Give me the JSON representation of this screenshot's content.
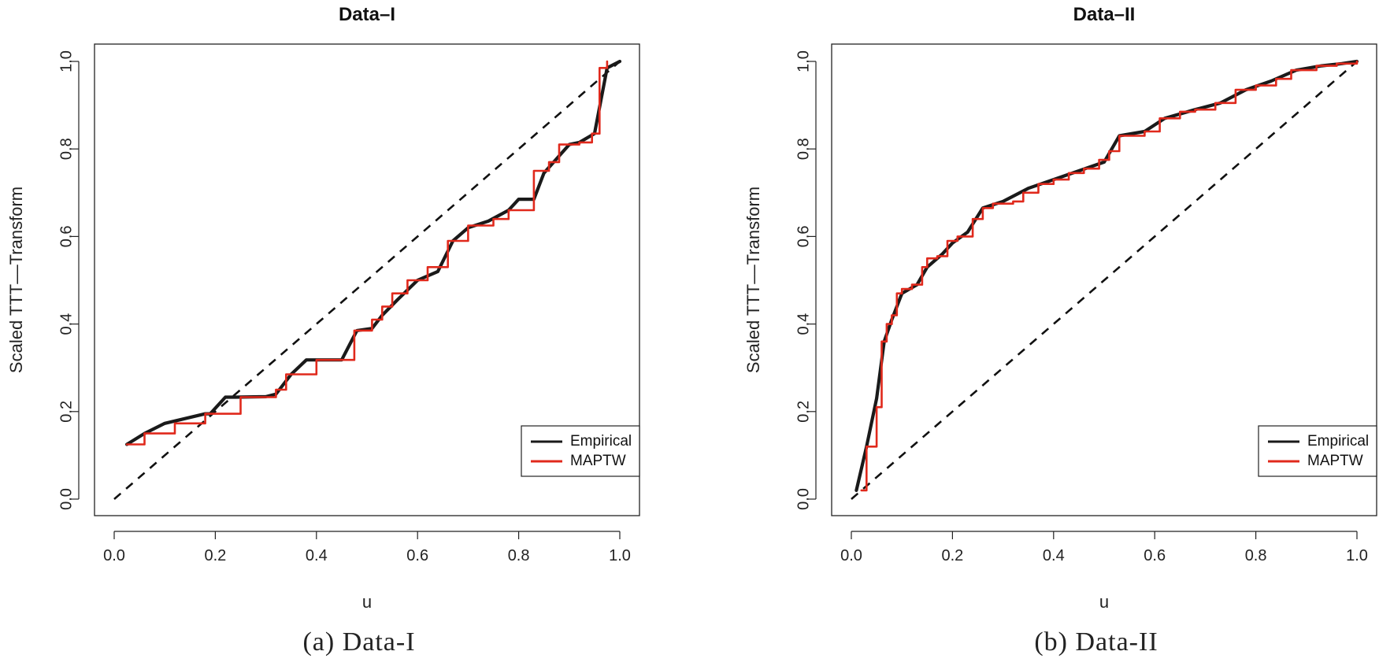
{
  "chart_data": [
    {
      "type": "line",
      "title": "Data–I",
      "caption": "(a) Data-I",
      "xlabel": "u",
      "ylabel": "Scaled TTT––Transform",
      "xlim": [
        0,
        1
      ],
      "ylim": [
        0,
        1
      ],
      "xticks": [
        "0.0",
        "0.2",
        "0.4",
        "0.6",
        "0.8",
        "1.0"
      ],
      "yticks": [
        "0.0",
        "0.2",
        "0.4",
        "0.6",
        "0.8",
        "1.0"
      ],
      "legend_position": "bottom-right",
      "reference_line": {
        "x": [
          0,
          1
        ],
        "y": [
          0,
          1
        ],
        "style": "dashed",
        "color": "#111111"
      },
      "series": [
        {
          "name": "Empirical",
          "color": "#1a1a1a",
          "step": false,
          "x": [
            0.025,
            0.06,
            0.1,
            0.18,
            0.19,
            0.22,
            0.24,
            0.3,
            0.32,
            0.35,
            0.38,
            0.45,
            0.48,
            0.51,
            0.53,
            0.56,
            0.6,
            0.64,
            0.67,
            0.7,
            0.74,
            0.78,
            0.8,
            0.83,
            0.85,
            0.9,
            0.92,
            0.95,
            0.975,
            1.0
          ],
          "y": [
            0.125,
            0.15,
            0.173,
            0.195,
            0.195,
            0.233,
            0.233,
            0.234,
            0.24,
            0.285,
            0.318,
            0.318,
            0.385,
            0.39,
            0.42,
            0.455,
            0.5,
            0.52,
            0.59,
            0.62,
            0.635,
            0.66,
            0.685,
            0.685,
            0.745,
            0.81,
            0.815,
            0.835,
            0.985,
            1.0
          ]
        },
        {
          "name": "MAPTW",
          "color": "#e0291c",
          "step": true,
          "x": [
            0.025,
            0.06,
            0.12,
            0.18,
            0.25,
            0.32,
            0.34,
            0.4,
            0.475,
            0.51,
            0.53,
            0.55,
            0.58,
            0.62,
            0.66,
            0.7,
            0.75,
            0.78,
            0.83,
            0.86,
            0.88,
            0.92,
            0.945,
            0.96,
            0.975
          ],
          "y": [
            0.125,
            0.15,
            0.173,
            0.195,
            0.233,
            0.25,
            0.285,
            0.318,
            0.385,
            0.41,
            0.44,
            0.47,
            0.5,
            0.53,
            0.59,
            0.625,
            0.64,
            0.66,
            0.75,
            0.77,
            0.81,
            0.815,
            0.835,
            0.985,
            1.0
          ]
        }
      ]
    },
    {
      "type": "line",
      "title": "Data–II",
      "caption": "(b) Data-II",
      "xlabel": "u",
      "ylabel": "Scaled TTT––Transform",
      "xlim": [
        0,
        1
      ],
      "ylim": [
        0,
        1
      ],
      "xticks": [
        "0.0",
        "0.2",
        "0.4",
        "0.6",
        "0.8",
        "1.0"
      ],
      "yticks": [
        "0.0",
        "0.2",
        "0.4",
        "0.6",
        "0.8",
        "1.0"
      ],
      "legend_position": "bottom-right",
      "reference_line": {
        "x": [
          0,
          1
        ],
        "y": [
          0,
          1
        ],
        "style": "dashed",
        "color": "#111111"
      },
      "series": [
        {
          "name": "Empirical",
          "color": "#1a1a1a",
          "step": false,
          "x": [
            0.01,
            0.03,
            0.05,
            0.065,
            0.08,
            0.1,
            0.13,
            0.15,
            0.18,
            0.2,
            0.23,
            0.26,
            0.3,
            0.35,
            0.4,
            0.45,
            0.5,
            0.53,
            0.58,
            0.62,
            0.68,
            0.73,
            0.78,
            0.83,
            0.88,
            0.93,
            0.97,
            1.0
          ],
          "y": [
            0.02,
            0.12,
            0.23,
            0.36,
            0.41,
            0.47,
            0.49,
            0.53,
            0.56,
            0.585,
            0.61,
            0.665,
            0.68,
            0.71,
            0.73,
            0.75,
            0.77,
            0.83,
            0.84,
            0.87,
            0.89,
            0.905,
            0.935,
            0.955,
            0.98,
            0.99,
            0.995,
            1.0
          ]
        },
        {
          "name": "MAPTW",
          "color": "#e0291c",
          "step": true,
          "x": [
            0.02,
            0.03,
            0.05,
            0.06,
            0.07,
            0.08,
            0.09,
            0.1,
            0.12,
            0.14,
            0.15,
            0.17,
            0.19,
            0.21,
            0.24,
            0.26,
            0.28,
            0.32,
            0.34,
            0.37,
            0.4,
            0.43,
            0.46,
            0.49,
            0.51,
            0.53,
            0.58,
            0.61,
            0.65,
            0.68,
            0.72,
            0.76,
            0.8,
            0.84,
            0.87,
            0.92,
            0.96,
            1.0
          ],
          "y": [
            0.02,
            0.12,
            0.21,
            0.36,
            0.4,
            0.42,
            0.47,
            0.48,
            0.49,
            0.53,
            0.55,
            0.555,
            0.59,
            0.6,
            0.64,
            0.665,
            0.675,
            0.68,
            0.7,
            0.72,
            0.73,
            0.745,
            0.755,
            0.775,
            0.795,
            0.83,
            0.84,
            0.87,
            0.885,
            0.89,
            0.905,
            0.935,
            0.945,
            0.96,
            0.98,
            0.99,
            0.995,
            1.0
          ]
        }
      ]
    }
  ]
}
